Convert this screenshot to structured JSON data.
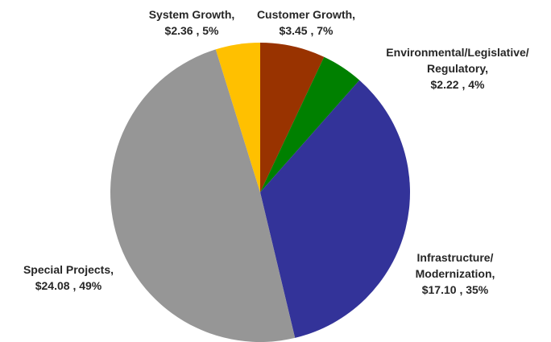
{
  "chart_data": {
    "type": "pie",
    "categories": [
      "Customer Growth,",
      "Environmental/Legislative/\nRegulatory,",
      "Infrastructure/\nModernization,",
      "Special Projects,",
      "System Growth,"
    ],
    "values": [
      3.45,
      2.22,
      17.1,
      24.08,
      2.36
    ],
    "value_labels": [
      "$3.45 , 7%",
      "$2.22 , 4%",
      "$17.10 , 35%",
      "$24.08 , 49%",
      "$2.36 , 5%"
    ],
    "colors": [
      "#993300",
      "#008000",
      "#333399",
      "#969696",
      "#FFC000"
    ]
  }
}
